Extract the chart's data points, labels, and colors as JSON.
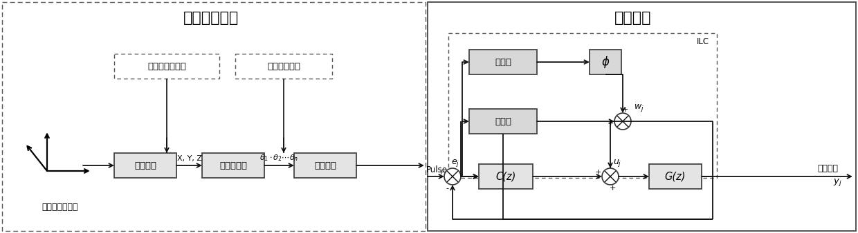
{
  "title_left": "运动规划算法",
  "title_right": "控制算法",
  "cartesian_coord": "笛卡尔空间坐标",
  "joint_coord": "关节空间坐标",
  "velocity_plan": "速度规划",
  "inverse_kin": "运动学逆解",
  "ratio_conv": "比率换算",
  "register": "寄存器",
  "phi": "ϕ",
  "cz": "C(z)",
  "gz": "G(z)",
  "pulse": "Pulse",
  "actual_pos": "实际位置",
  "ilc": "ILC",
  "cartesian_traj": "笛卡尔空间轨迹",
  "xyz": "X, Y, Z",
  "theta_label": "θ₁·θ₂···θₙ",
  "wj": "w",
  "ej": "e",
  "uj": "u",
  "yj": "y",
  "sub_j": "j",
  "plus": "+",
  "minus": "-"
}
